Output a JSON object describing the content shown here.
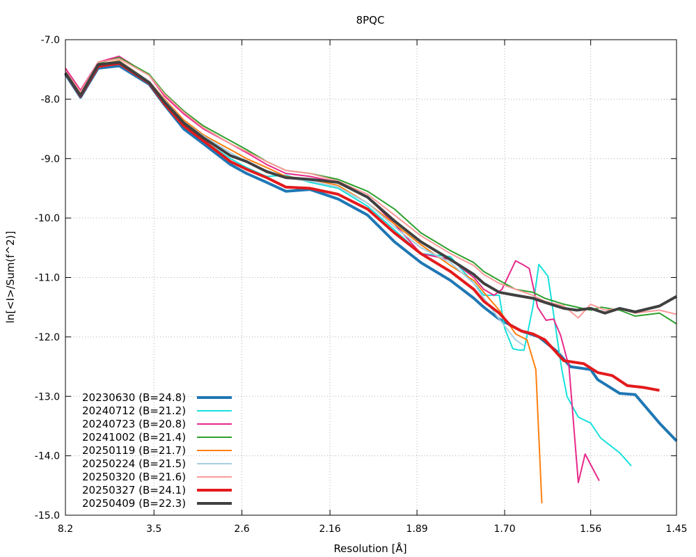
{
  "chart_data": {
    "type": "line",
    "title": "8PQC",
    "xlabel": "Resolution [Å]",
    "ylabel": "ln[<I>/Sum(f^2)]",
    "x_scale": "inverse-square-resolution",
    "xlim": [
      8.2,
      1.45
    ],
    "ylim": [
      -15.0,
      -7.0
    ],
    "x_ticks": [
      "8.2",
      "3.5",
      "2.6",
      "2.16",
      "1.89",
      "1.70",
      "1.56",
      "1.45"
    ],
    "x_tick_values": [
      8.2,
      3.5,
      2.6,
      2.16,
      1.89,
      1.7,
      1.56,
      1.45
    ],
    "y_ticks": [
      "-7.0",
      "-8.0",
      "-9.0",
      "-10.0",
      "-11.0",
      "-12.0",
      "-13.0",
      "-14.0",
      "-15.0"
    ],
    "y_tick_values": [
      -7.0,
      -8.0,
      -9.0,
      -10.0,
      -11.0,
      -12.0,
      -13.0,
      -14.0,
      -15.0
    ],
    "grid": true,
    "legend_position": "bottom-left",
    "series": [
      {
        "name": "20230630 (B=24.8)",
        "color": "#1f77b4",
        "width": 4,
        "x": [
          8.2,
          6.17,
          5.03,
          4.25,
          3.58,
          3.34,
          3.1,
          2.9,
          2.68,
          2.57,
          2.45,
          2.35,
          2.24,
          2.13,
          2.03,
          1.95,
          1.88,
          1.81,
          1.76,
          1.74,
          1.71,
          1.67,
          1.64,
          1.61,
          1.59,
          1.56,
          1.55,
          1.52,
          1.5,
          1.47,
          1.45
        ],
        "y": [
          -7.58,
          -7.97,
          -7.48,
          -7.44,
          -7.75,
          -8.1,
          -8.5,
          -8.75,
          -9.1,
          -9.25,
          -9.4,
          -9.55,
          -9.52,
          -9.68,
          -9.95,
          -10.4,
          -10.75,
          -11.05,
          -11.35,
          -11.5,
          -11.7,
          -11.9,
          -12.0,
          -12.25,
          -12.5,
          -12.55,
          -12.72,
          -12.95,
          -12.97,
          -13.45,
          -13.75
        ]
      },
      {
        "name": "20240712 (B=21.2)",
        "color": "#17e1dc",
        "width": 2,
        "x": [
          8.2,
          6.17,
          5.03,
          4.25,
          3.58,
          3.34,
          3.1,
          2.9,
          2.68,
          2.57,
          2.45,
          2.35,
          2.24,
          2.13,
          2.03,
          1.95,
          1.88,
          1.81,
          1.76,
          1.74,
          1.71,
          1.7,
          1.685,
          1.675,
          1.665,
          1.65,
          1.64,
          1.625,
          1.603,
          1.595,
          1.578,
          1.56,
          1.546,
          1.52,
          1.505
        ],
        "y": [
          -7.55,
          -7.95,
          -7.45,
          -7.41,
          -7.72,
          -8.05,
          -8.45,
          -8.7,
          -9.0,
          -9.15,
          -9.3,
          -9.28,
          -9.4,
          -9.5,
          -9.8,
          -10.2,
          -10.6,
          -10.65,
          -11.1,
          -11.3,
          -11.3,
          -11.85,
          -12.2,
          -12.22,
          -12.22,
          -11.5,
          -10.78,
          -10.98,
          -12.55,
          -13.0,
          -13.35,
          -13.45,
          -13.7,
          -13.95,
          -14.17
        ]
      },
      {
        "name": "20240723 (B=20.8)",
        "color": "#e7298a",
        "width": 2,
        "x": [
          8.2,
          6.17,
          5.03,
          4.25,
          3.58,
          3.34,
          3.1,
          2.9,
          2.68,
          2.57,
          2.45,
          2.35,
          2.24,
          2.13,
          2.03,
          1.95,
          1.88,
          1.81,
          1.76,
          1.74,
          1.72,
          1.705,
          1.68,
          1.668,
          1.656,
          1.642,
          1.628,
          1.616,
          1.605,
          1.592,
          1.578,
          1.568,
          1.548
        ],
        "y": [
          -7.48,
          -7.85,
          -7.38,
          -7.28,
          -7.6,
          -7.95,
          -8.25,
          -8.5,
          -8.75,
          -8.9,
          -9.1,
          -9.25,
          -9.3,
          -9.4,
          -9.65,
          -10.1,
          -10.6,
          -10.7,
          -11.0,
          -11.2,
          -11.3,
          -11.2,
          -10.72,
          -10.78,
          -10.85,
          -11.5,
          -11.72,
          -11.7,
          -11.97,
          -12.5,
          -14.45,
          -13.97,
          -14.42
        ]
      },
      {
        "name": "20241002 (B=21.4)",
        "color": "#2ca02c",
        "width": 2,
        "x": [
          8.2,
          6.17,
          5.03,
          4.25,
          3.58,
          3.34,
          3.1,
          2.9,
          2.68,
          2.57,
          2.45,
          2.35,
          2.24,
          2.13,
          2.03,
          1.95,
          1.88,
          1.81,
          1.76,
          1.74,
          1.71,
          1.68,
          1.65,
          1.63,
          1.6,
          1.56,
          1.545,
          1.52,
          1.5,
          1.47,
          1.45
        ],
        "y": [
          -7.55,
          -7.9,
          -7.4,
          -7.3,
          -7.58,
          -7.9,
          -8.2,
          -8.45,
          -8.7,
          -8.85,
          -9.05,
          -9.2,
          -9.25,
          -9.35,
          -9.55,
          -9.85,
          -10.25,
          -10.55,
          -10.75,
          -10.9,
          -11.05,
          -11.2,
          -11.25,
          -11.35,
          -11.45,
          -11.55,
          -11.5,
          -11.55,
          -11.65,
          -11.6,
          -11.78
        ]
      },
      {
        "name": "20250119 (B=21.7)",
        "color": "#ff7f0e",
        "width": 2,
        "x": [
          8.2,
          6.17,
          5.03,
          4.25,
          3.58,
          3.34,
          3.1,
          2.9,
          2.68,
          2.57,
          2.45,
          2.35,
          2.24,
          2.13,
          2.03,
          1.95,
          1.88,
          1.81,
          1.76,
          1.74,
          1.71,
          1.68,
          1.66,
          1.645,
          1.635
        ],
        "y": [
          -7.55,
          -7.92,
          -7.42,
          -7.35,
          -7.7,
          -8.0,
          -8.35,
          -8.6,
          -8.85,
          -9.0,
          -9.15,
          -9.3,
          -9.35,
          -9.45,
          -9.75,
          -10.1,
          -10.45,
          -10.8,
          -11.05,
          -11.25,
          -11.55,
          -11.95,
          -12.05,
          -12.55,
          -14.8
        ]
      },
      {
        "name": "20250224 (B=21.5)",
        "color": "#a6cee3",
        "width": 2,
        "x": [
          8.2,
          6.17,
          5.03,
          4.25,
          3.58,
          3.34,
          3.1,
          2.9,
          2.68,
          2.57,
          2.45,
          2.35,
          2.24,
          2.13,
          2.03,
          1.95,
          1.88,
          1.81,
          1.76,
          1.74,
          1.71,
          1.68,
          1.665
        ],
        "y": [
          -7.55,
          -7.93,
          -7.42,
          -7.36,
          -7.7,
          -8.02,
          -8.38,
          -8.62,
          -8.9,
          -9.05,
          -9.2,
          -9.32,
          -9.38,
          -9.48,
          -9.75,
          -10.15,
          -10.5,
          -10.75,
          -11.1,
          -11.35,
          -11.7,
          -12.05,
          -12.15
        ]
      },
      {
        "name": "20250320 (B=21.6)",
        "color": "#fb9a99",
        "width": 2,
        "x": [
          8.2,
          6.17,
          5.03,
          4.25,
          3.58,
          3.34,
          3.1,
          2.9,
          2.68,
          2.57,
          2.45,
          2.35,
          2.24,
          2.13,
          2.03,
          1.95,
          1.88,
          1.81,
          1.76,
          1.74,
          1.71,
          1.68,
          1.65,
          1.63,
          1.6,
          1.578,
          1.56,
          1.54,
          1.52,
          1.5,
          1.47,
          1.45
        ],
        "y": [
          -7.52,
          -7.88,
          -7.38,
          -7.32,
          -7.6,
          -7.92,
          -8.22,
          -8.48,
          -8.75,
          -8.88,
          -9.05,
          -9.2,
          -9.25,
          -9.38,
          -9.6,
          -9.95,
          -10.3,
          -10.6,
          -10.8,
          -10.95,
          -11.1,
          -11.2,
          -11.3,
          -11.4,
          -11.48,
          -11.68,
          -11.45,
          -11.55,
          -11.52,
          -11.6,
          -11.55,
          -11.62
        ]
      },
      {
        "name": "20250327 (B=24.1)",
        "color": "#e31a1c",
        "width": 4,
        "x": [
          8.2,
          6.17,
          5.03,
          4.25,
          3.58,
          3.34,
          3.1,
          2.9,
          2.68,
          2.57,
          2.45,
          2.35,
          2.24,
          2.13,
          2.03,
          1.95,
          1.88,
          1.81,
          1.76,
          1.74,
          1.71,
          1.69,
          1.67,
          1.65,
          1.63,
          1.6,
          1.57,
          1.55,
          1.53,
          1.51,
          1.49,
          1.47
        ],
        "y": [
          -7.56,
          -7.95,
          -7.45,
          -7.4,
          -7.73,
          -8.08,
          -8.45,
          -8.7,
          -9.05,
          -9.18,
          -9.32,
          -9.48,
          -9.5,
          -9.6,
          -9.85,
          -10.25,
          -10.6,
          -10.9,
          -11.2,
          -11.4,
          -11.6,
          -11.8,
          -11.9,
          -11.95,
          -12.05,
          -12.4,
          -12.45,
          -12.6,
          -12.65,
          -12.82,
          -12.85,
          -12.9
        ]
      },
      {
        "name": "20250409 (B=22.3)",
        "color": "#404040",
        "width": 4,
        "x": [
          8.2,
          6.17,
          5.03,
          4.25,
          3.58,
          3.34,
          3.1,
          2.9,
          2.68,
          2.57,
          2.45,
          2.35,
          2.24,
          2.13,
          2.03,
          1.95,
          1.88,
          1.81,
          1.76,
          1.74,
          1.71,
          1.68,
          1.65,
          1.63,
          1.6,
          1.58,
          1.56,
          1.54,
          1.52,
          1.5,
          1.47,
          1.45
        ],
        "y": [
          -7.56,
          -7.94,
          -7.42,
          -7.38,
          -7.72,
          -8.05,
          -8.4,
          -8.65,
          -8.95,
          -9.05,
          -9.22,
          -9.32,
          -9.35,
          -9.4,
          -9.65,
          -10.05,
          -10.4,
          -10.7,
          -10.95,
          -11.1,
          -11.25,
          -11.3,
          -11.35,
          -11.42,
          -11.52,
          -11.55,
          -11.52,
          -11.6,
          -11.52,
          -11.58,
          -11.48,
          -11.32
        ]
      }
    ]
  }
}
